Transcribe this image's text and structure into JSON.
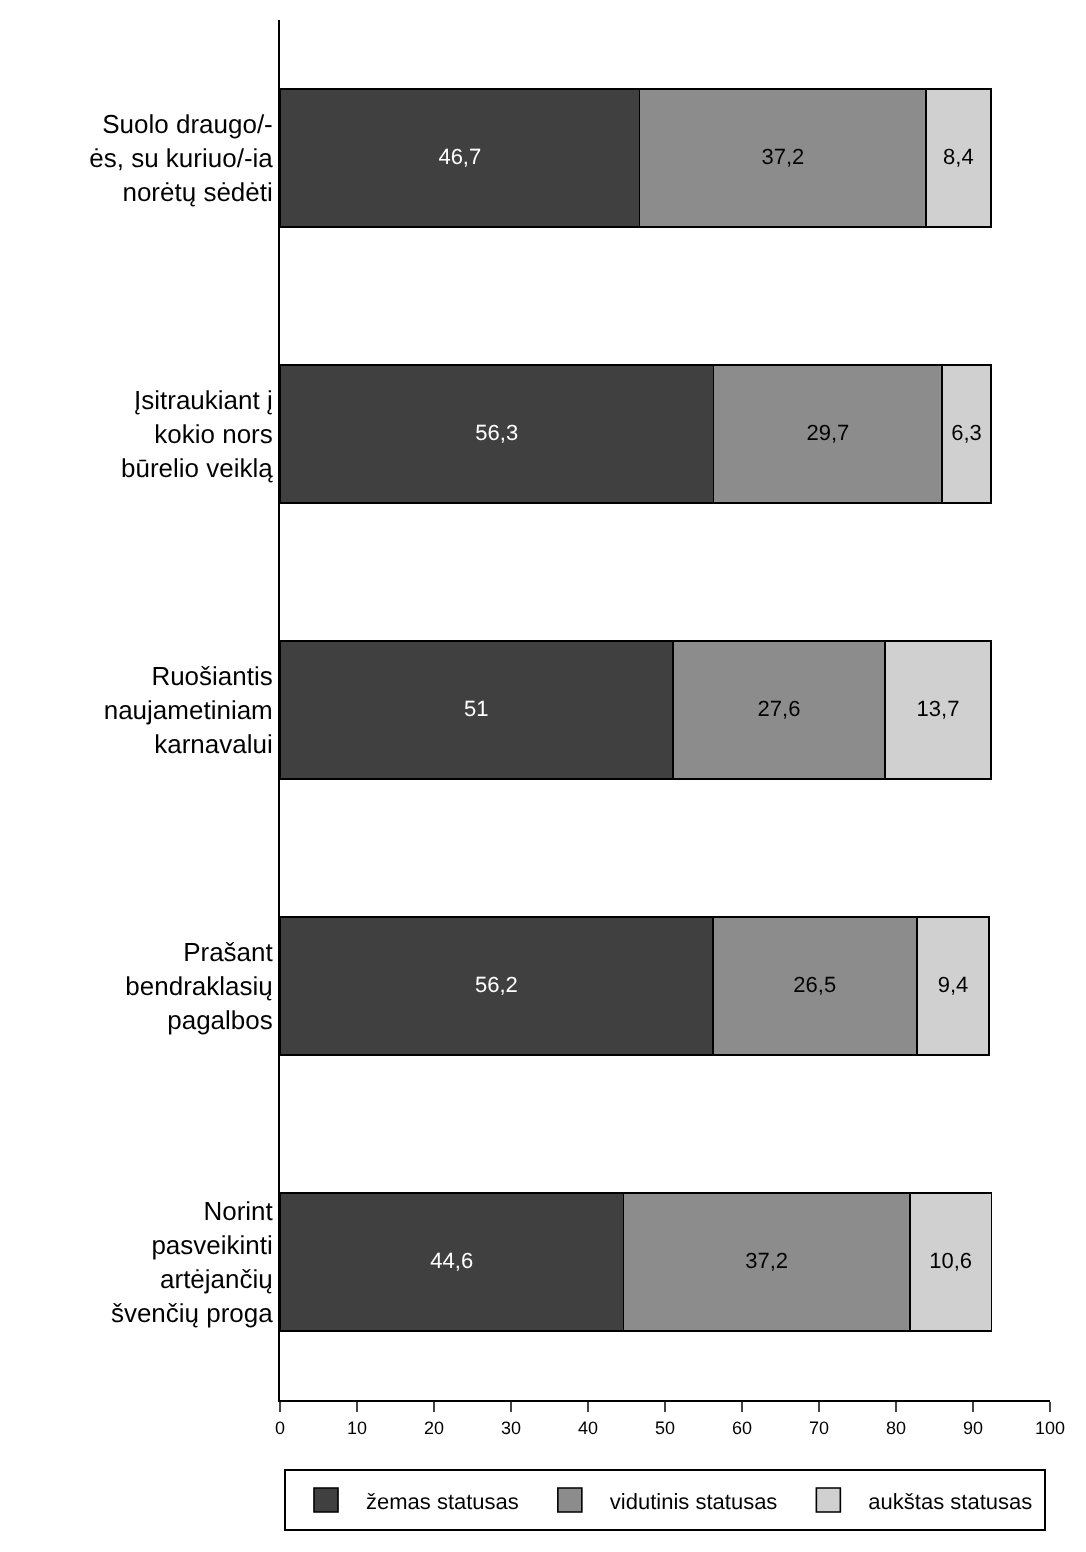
{
  "chart_data": {
    "type": "bar",
    "orientation": "horizontal",
    "stacked": true,
    "categories": [
      "Suolo draugo/-\nės, su kuriuo/-ia\nnorėtų sėdėti",
      "Įsitraukiant į\nkokio nors\nbūrelio veiklą",
      "Ruošiantis\nnaujametiniam\nkarnavalui",
      "Prašant\nbendraklasių\npagalbos",
      "Norint\npasveikinti\nartėjančių\nšvenčių proga"
    ],
    "series": [
      {
        "name": "žemas statusas",
        "color": "#404040",
        "values": [
          46.7,
          56.3,
          51,
          56.2,
          44.6
        ],
        "value_labels": [
          "46,7",
          "56,3",
          "51",
          "56,2",
          "44,6"
        ]
      },
      {
        "name": "vidutinis statusas",
        "color": "#8c8c8c",
        "values": [
          37.2,
          29.7,
          27.6,
          26.5,
          37.2
        ],
        "value_labels": [
          "37,2",
          "29,7",
          "27,6",
          "26,5",
          "37,2"
        ]
      },
      {
        "name": "aukštas statusas",
        "color": "#d0d0d0",
        "values": [
          8.4,
          6.3,
          13.7,
          9.4,
          10.6
        ],
        "value_labels": [
          "8,4",
          "6,3",
          "13,7",
          "9,4",
          "10,6"
        ]
      }
    ],
    "xlim": [
      0,
      100
    ],
    "xticks": [
      0,
      10,
      20,
      30,
      40,
      50,
      60,
      70,
      80,
      90,
      100
    ],
    "grid": false,
    "legend": "bottom"
  }
}
